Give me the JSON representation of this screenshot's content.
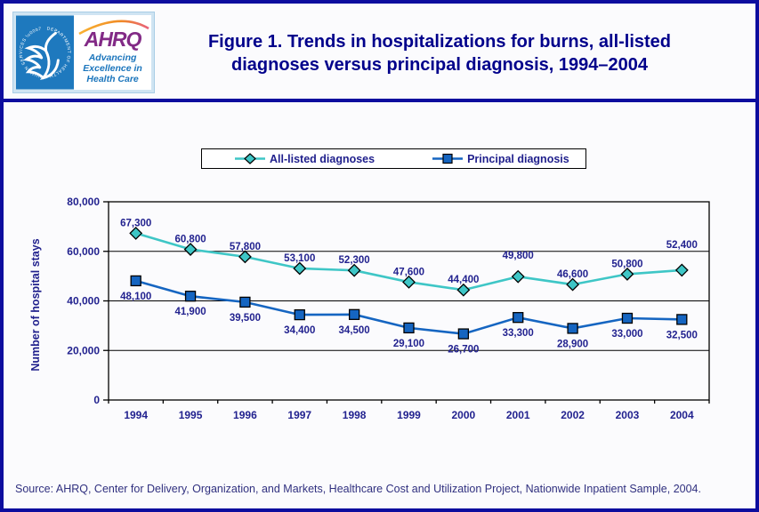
{
  "header": {
    "logo": {
      "ahrq_acronym": "AHRQ",
      "tagline": "Advancing Excellence in Health Care",
      "seal_text": "DEPARTMENT OF HEALTH & HUMAN SERVICES · USA"
    },
    "title": "Figure 1. Trends in hospitalizations for burns, all-listed diagnoses versus principal diagnosis, 1994–2004"
  },
  "chart_data": {
    "type": "line",
    "title": "Figure 1. Trends in hospitalizations for burns, all-listed diagnoses versus principal diagnosis, 1994–2004",
    "categories": [
      "1994",
      "1995",
      "1996",
      "1997",
      "1998",
      "1999",
      "2000",
      "2001",
      "2002",
      "2003",
      "2004"
    ],
    "series": [
      {
        "name": "All-listed diagnoses",
        "marker": "diamond",
        "color": "#3ec6c6",
        "values": [
          67300,
          60800,
          57800,
          53100,
          52300,
          47600,
          44400,
          49800,
          46600,
          50800,
          52400
        ]
      },
      {
        "name": "Principal diagnosis",
        "marker": "square",
        "color": "#1565c1",
        "values": [
          48100,
          41900,
          39500,
          34400,
          34500,
          29100,
          26700,
          33300,
          28900,
          33000,
          32500
        ]
      }
    ],
    "xlabel": "",
    "ylabel": "Number of hospital stays",
    "ylim": [
      0,
      80000
    ],
    "ytick_step": 20000,
    "ytick_labels": [
      "0",
      "20,000",
      "40,000",
      "60,000",
      "80,000"
    ],
    "grid": true,
    "legend_position": "top",
    "data_labels": true,
    "label_color": "#22228f",
    "axis_color": "#000000"
  },
  "source": "Source: AHRQ, Center for Delivery, Organization, and Markets, Healthcare Cost and Utilization Project, Nationwide Inpatient Sample, 2004."
}
